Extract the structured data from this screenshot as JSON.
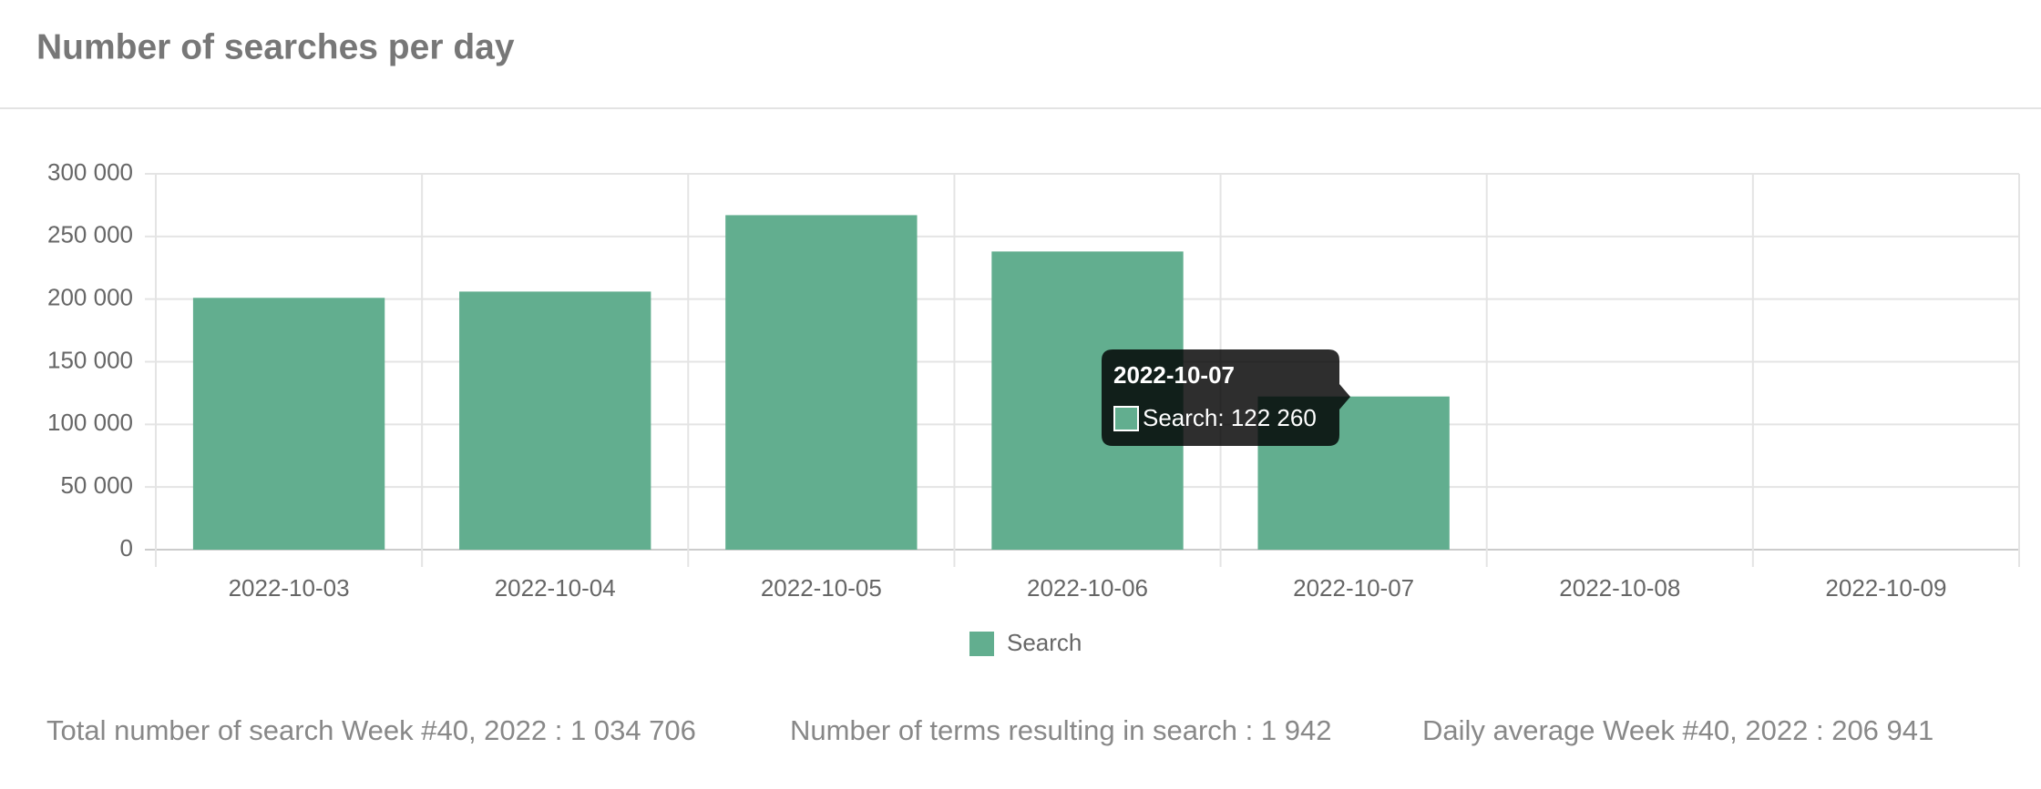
{
  "chart_data": {
    "type": "bar",
    "title": "Number of searches per day",
    "categories": [
      "2022-10-03",
      "2022-10-04",
      "2022-10-05",
      "2022-10-06",
      "2022-10-07",
      "2022-10-08",
      "2022-10-09"
    ],
    "series": [
      {
        "name": "Search",
        "color": "#62ae8f",
        "values": [
          201000,
          206000,
          267000,
          238000,
          122260,
          null,
          null
        ]
      }
    ],
    "ylim": [
      0,
      300000
    ],
    "yticks": [
      0,
      {
        "value": 50000,
        "label": "50 000"
      },
      {
        "value": 100000,
        "label": "100 000"
      },
      {
        "value": 150000,
        "label": "150 000"
      },
      {
        "value": 200000,
        "label": "200 000"
      },
      {
        "value": 250000,
        "label": "250 000"
      },
      {
        "value": 300000,
        "label": "300 000"
      }
    ],
    "grid": true,
    "tooltip": {
      "title": "2022-10-07",
      "label": "Search: 122 260"
    }
  },
  "stats": [
    "Total number of search Week #40, 2022 : 1 034 706",
    "Number of terms resulting in search : 1 942",
    "Daily average Week #40, 2022 : 206 941"
  ]
}
